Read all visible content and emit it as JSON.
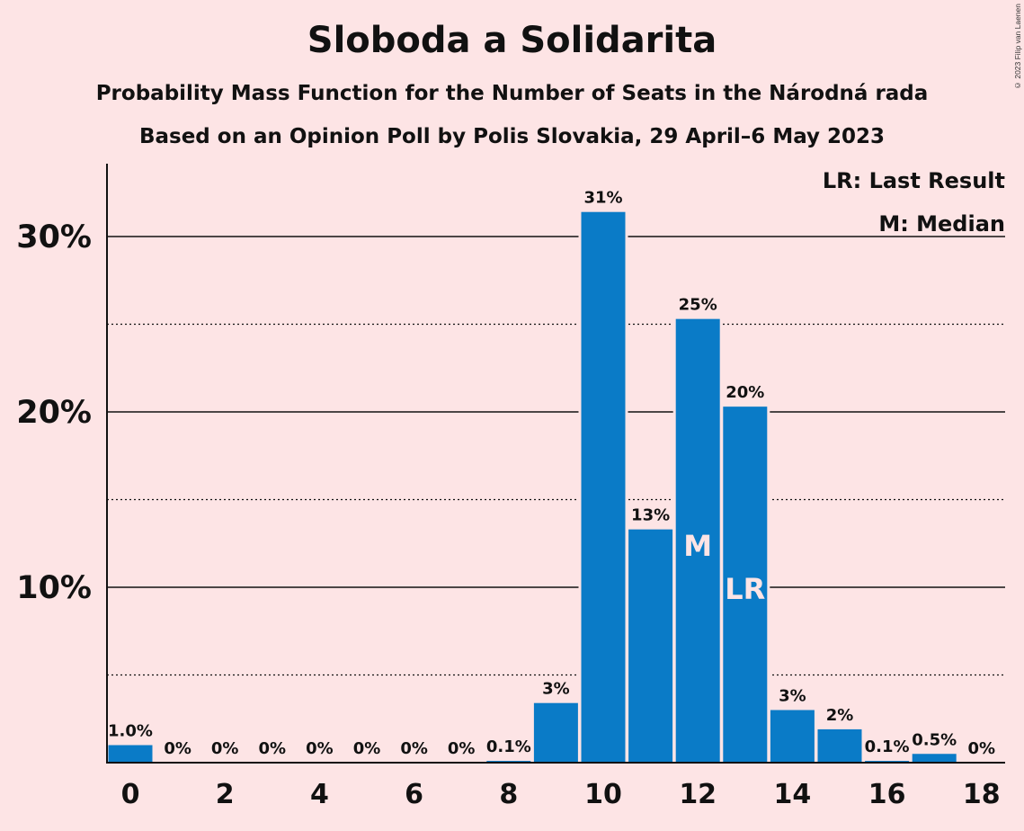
{
  "header": {
    "title": "Sloboda a Solidarita",
    "subtitle": "Probability Mass Function for the Number of Seats in the Národná rada",
    "source": "Based on an Opinion Poll by Polis Slovakia, 29 April–6 May 2023"
  },
  "copyright": "© 2023 Filip van Laenen",
  "legend": {
    "lr": "LR: Last Result",
    "m": "M: Median"
  },
  "colors": {
    "bar": "#0a7bc7",
    "background": "#fde4e5"
  },
  "chart_data": {
    "type": "bar",
    "categories": [
      0,
      1,
      2,
      3,
      4,
      5,
      6,
      7,
      8,
      9,
      10,
      11,
      12,
      13,
      14,
      15,
      16,
      17,
      18
    ],
    "values": [
      1.0,
      0,
      0,
      0,
      0,
      0,
      0,
      0,
      0.1,
      3.4,
      31.4,
      13.3,
      25.3,
      20.3,
      3.0,
      1.9,
      0.1,
      0.5,
      0
    ],
    "value_labels": [
      "1.0%",
      "0%",
      "0%",
      "0%",
      "0%",
      "0%",
      "0%",
      "0%",
      "0.1%",
      "3%",
      "31%",
      "13%",
      "25%",
      "20%",
      "3%",
      "2%",
      "0.1%",
      "0.5%",
      "0%"
    ],
    "x_tick_labels": [
      "0",
      "2",
      "4",
      "6",
      "8",
      "10",
      "12",
      "14",
      "16",
      "18"
    ],
    "y_ticks": [
      {
        "value": 10,
        "label": "10%"
      },
      {
        "value": 20,
        "label": "20%"
      },
      {
        "value": 30,
        "label": "30%"
      }
    ],
    "minor_gridlines": [
      5,
      15,
      25
    ],
    "ylim": [
      0,
      34
    ],
    "median": {
      "seats": 12,
      "label": "M"
    },
    "last_result": {
      "seats": 13,
      "label": "LR"
    },
    "legend_position": "top-right"
  }
}
